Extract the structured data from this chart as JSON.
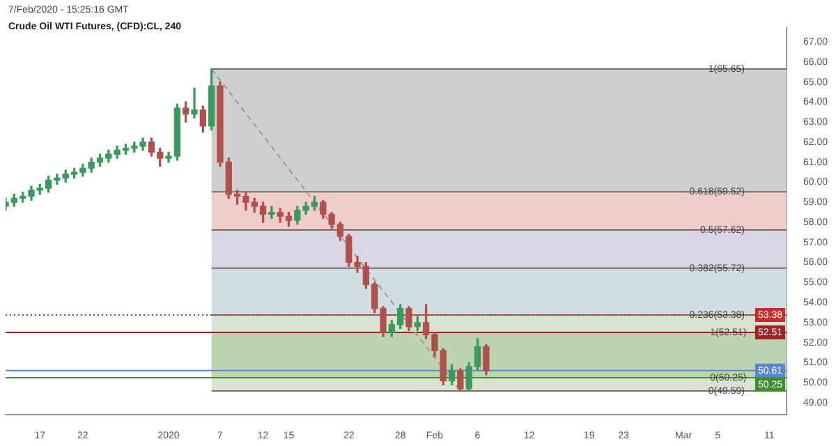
{
  "chart_data": {
    "type": "candlestick",
    "title": "Crude Oil WTI Futures, (CFD):CL, 240",
    "subtitle": "7/Feb/2020 - 15:25:16 GMT",
    "x": [
      "2019-12-13",
      "2019-12-14",
      "2019-12-15",
      "2019-12-16",
      "2019-12-17",
      "2019-12-18",
      "2019-12-19",
      "2019-12-20",
      "2019-12-21",
      "2019-12-22",
      "2019-12-23",
      "2019-12-24",
      "2019-12-25",
      "2019-12-26",
      "2019-12-27",
      "2019-12-28",
      "2019-12-29",
      "2019-12-30",
      "2019-12-31",
      "2020-01-01",
      "2020-01-02",
      "2020-01-03",
      "2020-01-04",
      "2020-01-05",
      "2020-01-06",
      "2020-01-07",
      "2020-01-08",
      "2020-01-09",
      "2020-01-10",
      "2020-01-11",
      "2020-01-12",
      "2020-01-13",
      "2020-01-14",
      "2020-01-15",
      "2020-01-16",
      "2020-01-17",
      "2020-01-18",
      "2020-01-19",
      "2020-01-20",
      "2020-01-21",
      "2020-01-22",
      "2020-01-23",
      "2020-01-24",
      "2020-01-25",
      "2020-01-26",
      "2020-01-27",
      "2020-01-28",
      "2020-01-29",
      "2020-01-30",
      "2020-01-31",
      "2020-02-01",
      "2020-02-02",
      "2020-02-03",
      "2020-02-04",
      "2020-02-05",
      "2020-02-06",
      "2020-02-07"
    ],
    "ohlc": [
      [
        58.8,
        59.2,
        58.6,
        59.0
      ],
      [
        59.0,
        59.4,
        58.8,
        59.2
      ],
      [
        59.2,
        59.5,
        59.0,
        59.3
      ],
      [
        59.3,
        59.8,
        59.1,
        59.6
      ],
      [
        59.6,
        59.9,
        59.4,
        59.7
      ],
      [
        59.7,
        60.3,
        59.5,
        60.1
      ],
      [
        60.1,
        60.4,
        59.9,
        60.2
      ],
      [
        60.2,
        60.6,
        60.0,
        60.4
      ],
      [
        60.4,
        60.7,
        60.2,
        60.5
      ],
      [
        60.5,
        60.9,
        60.3,
        60.7
      ],
      [
        60.7,
        61.2,
        60.5,
        61.0
      ],
      [
        61.0,
        61.4,
        60.8,
        61.2
      ],
      [
        61.2,
        61.6,
        61.0,
        61.4
      ],
      [
        61.4,
        61.8,
        61.2,
        61.6
      ],
      [
        61.6,
        61.9,
        61.4,
        61.7
      ],
      [
        61.7,
        62.0,
        61.5,
        61.8
      ],
      [
        61.8,
        62.2,
        61.6,
        62.0
      ],
      [
        62.0,
        62.2,
        61.3,
        61.5
      ],
      [
        61.5,
        61.7,
        60.8,
        61.2
      ],
      [
        61.2,
        61.5,
        61.0,
        61.3
      ],
      [
        61.3,
        63.9,
        61.1,
        63.7
      ],
      [
        63.7,
        64.0,
        63.0,
        63.4
      ],
      [
        63.4,
        64.7,
        63.2,
        63.6
      ],
      [
        63.6,
        63.8,
        62.5,
        62.8
      ],
      [
        62.8,
        65.65,
        62.6,
        64.8
      ],
      [
        64.8,
        65.0,
        60.8,
        61.0
      ],
      [
        61.0,
        61.2,
        59.2,
        59.4
      ],
      [
        59.4,
        59.6,
        58.9,
        59.3
      ],
      [
        59.3,
        59.5,
        58.6,
        59.0
      ],
      [
        59.0,
        59.2,
        58.5,
        58.8
      ],
      [
        58.8,
        59.0,
        58.0,
        58.4
      ],
      [
        58.4,
        58.8,
        58.2,
        58.5
      ],
      [
        58.5,
        58.7,
        58.0,
        58.3
      ],
      [
        58.3,
        58.5,
        57.8,
        58.1
      ],
      [
        58.1,
        58.8,
        57.9,
        58.6
      ],
      [
        58.6,
        59.0,
        58.4,
        58.8
      ],
      [
        58.8,
        59.3,
        58.6,
        59.0
      ],
      [
        59.0,
        59.1,
        58.2,
        58.4
      ],
      [
        58.4,
        58.5,
        57.7,
        57.9
      ],
      [
        57.9,
        58.0,
        57.1,
        57.3
      ],
      [
        57.3,
        57.4,
        55.8,
        56.0
      ],
      [
        56.0,
        56.3,
        55.5,
        55.8
      ],
      [
        55.8,
        56.0,
        54.7,
        54.9
      ],
      [
        54.9,
        55.0,
        53.5,
        53.7
      ],
      [
        53.7,
        53.8,
        52.3,
        52.5
      ],
      [
        52.5,
        53.1,
        52.3,
        52.9
      ],
      [
        52.9,
        53.9,
        52.7,
        53.7
      ],
      [
        53.7,
        53.8,
        52.6,
        52.8
      ],
      [
        52.8,
        53.3,
        52.6,
        53.0
      ],
      [
        53.0,
        53.9,
        52.2,
        52.4
      ],
      [
        52.4,
        52.5,
        51.3,
        51.6
      ],
      [
        51.6,
        51.7,
        49.9,
        50.1
      ],
      [
        50.1,
        50.9,
        49.9,
        50.6
      ],
      [
        50.6,
        50.7,
        49.59,
        49.7
      ],
      [
        49.7,
        51.0,
        49.6,
        50.8
      ],
      [
        50.8,
        52.2,
        50.6,
        51.8
      ],
      [
        51.8,
        51.9,
        50.4,
        50.6
      ]
    ],
    "colors": [
      "#3a9a5e",
      "#3a9a5e",
      "#3a9a5e",
      "#3a9a5e",
      "#3a9a5e",
      "#3a9a5e",
      "#3a9a5e",
      "#3a9a5e",
      "#3a9a5e",
      "#3a9a5e",
      "#3a9a5e",
      "#3a9a5e",
      "#3a9a5e",
      "#3a9a5e",
      "#3a9a5e",
      "#3a9a5e",
      "#3a9a5e",
      "#b0504b",
      "#b0504b",
      "#3a9a5e",
      "#3a9a5e",
      "#b0504b",
      "#3a9a5e",
      "#b0504b",
      "#3a9a5e",
      "#b0504b",
      "#b0504b",
      "#b0504b",
      "#b0504b",
      "#b0504b",
      "#b0504b",
      "#3a9a5e",
      "#b0504b",
      "#b0504b",
      "#3a9a5e",
      "#3a9a5e",
      "#3a9a5e",
      "#b0504b",
      "#b0504b",
      "#b0504b",
      "#b0504b",
      "#b0504b",
      "#b0504b",
      "#b0504b",
      "#b0504b",
      "#3a9a5e",
      "#3a9a5e",
      "#b0504b",
      "#3a9a5e",
      "#b0504b",
      "#b0504b",
      "#b0504b",
      "#3a9a5e",
      "#b0504b",
      "#3a9a5e",
      "#3a9a5e",
      "#b0504b"
    ],
    "series": [
      {
        "type": "line",
        "x": [
          "2020-01-06",
          "2020-02-04"
        ],
        "values": [
          65.65,
          49.59
        ],
        "color": "#999999",
        "line_style": "dashed"
      }
    ],
    "xlim": [
      "2019-12-13",
      "2020-03-13"
    ],
    "xticks": [
      {
        "value": "2019-12-17",
        "label": "17"
      },
      {
        "value": "2019-12-22",
        "label": "22"
      },
      {
        "value": "2020-01-01",
        "label": "2020"
      },
      {
        "value": "2020-01-07",
        "label": "7"
      },
      {
        "value": "2020-01-12",
        "label": "12"
      },
      {
        "value": "2020-01-15",
        "label": "15"
      },
      {
        "value": "2020-01-22",
        "label": "22"
      },
      {
        "value": "2020-01-28",
        "label": "28"
      },
      {
        "value": "2020-02-01",
        "label": "Feb"
      },
      {
        "value": "2020-02-06",
        "label": "6"
      },
      {
        "value": "2020-02-12",
        "label": "12"
      },
      {
        "value": "2020-02-19",
        "label": "19"
      },
      {
        "value": "2020-02-23",
        "label": "23"
      },
      {
        "value": "2020-03-01",
        "label": "Mar"
      },
      {
        "value": "2020-03-05",
        "label": "5"
      },
      {
        "value": "2020-03-11",
        "label": "11"
      }
    ],
    "ylim": [
      48.4,
      67.7
    ],
    "yticks": [
      {
        "value": 49,
        "label": "49.00"
      },
      {
        "value": 50,
        "label": "50.00"
      },
      {
        "value": 51,
        "label": "51.00"
      },
      {
        "value": 52,
        "label": "52.00"
      },
      {
        "value": 53,
        "label": "53.00"
      },
      {
        "value": 54,
        "label": "54.00"
      },
      {
        "value": 55,
        "label": "55.00"
      },
      {
        "value": 56,
        "label": "56.00"
      },
      {
        "value": 57,
        "label": "57.00"
      },
      {
        "value": 58,
        "label": "58.00"
      },
      {
        "value": 59,
        "label": "59.00"
      },
      {
        "value": 60,
        "label": "60.00"
      },
      {
        "value": 61,
        "label": "61.00"
      },
      {
        "value": 62,
        "label": "62.00"
      },
      {
        "value": 63,
        "label": "63.00"
      },
      {
        "value": 64,
        "label": "64.00"
      },
      {
        "value": 65,
        "label": "65.00"
      },
      {
        "value": 66,
        "label": "66.00"
      },
      {
        "value": 67,
        "label": "67.00"
      }
    ],
    "bands": [
      {
        "axis": "y",
        "from": 59.52,
        "to": 65.65,
        "color": "#cfcfcf"
      },
      {
        "axis": "y",
        "from": 57.62,
        "to": 59.52,
        "color": "#efcdcd"
      },
      {
        "axis": "y",
        "from": 55.72,
        "to": 57.62,
        "color": "#dad6e6"
      },
      {
        "axis": "y",
        "from": 53.38,
        "to": 55.72,
        "color": "#d2dde2"
      },
      {
        "axis": "y",
        "from": 49.59,
        "to": 53.38,
        "color": "#d9e3d4"
      },
      {
        "axis": "y",
        "from": 50.25,
        "to": 52.51,
        "color": "#bcd5b0"
      }
    ],
    "annotations": [
      {
        "text": "1(52.51)",
        "x": "2020-03-08",
        "y": 52.51
      },
      {
        "text": "0(50.25)",
        "x": "2020-03-08",
        "y": 50.25
      }
    ],
    "ref_lines": [
      {
        "axis": "y",
        "value": 65.65,
        "label": "1(65.65)"
      },
      {
        "axis": "y",
        "value": 59.52,
        "label": "0.618(59.52)"
      },
      {
        "axis": "y",
        "value": 57.62,
        "label": "0.5(57.62)"
      },
      {
        "axis": "y",
        "value": 55.72,
        "label": "0.382(55.72)"
      },
      {
        "axis": "y",
        "value": 53.38,
        "label": "0.236(53.38)"
      },
      {
        "axis": "y",
        "value": 49.59,
        "label": "0(49.59)"
      },
      {
        "axis": "y",
        "value": 53.38,
        "label": "53.38",
        "color": "#c0302c",
        "line_style": "dotted"
      },
      {
        "axis": "y",
        "value": 52.51,
        "label": "52.51",
        "color": "#9c2424",
        "line_style": "solid"
      },
      {
        "axis": "y",
        "value": 50.61,
        "label": "50.61",
        "color": "#5a86d0",
        "line_style": "solid"
      },
      {
        "axis": "y",
        "value": 50.25,
        "label": "50.25",
        "color": "#3f8d2e",
        "line_style": "solid"
      }
    ],
    "grid": false,
    "legend": false
  }
}
